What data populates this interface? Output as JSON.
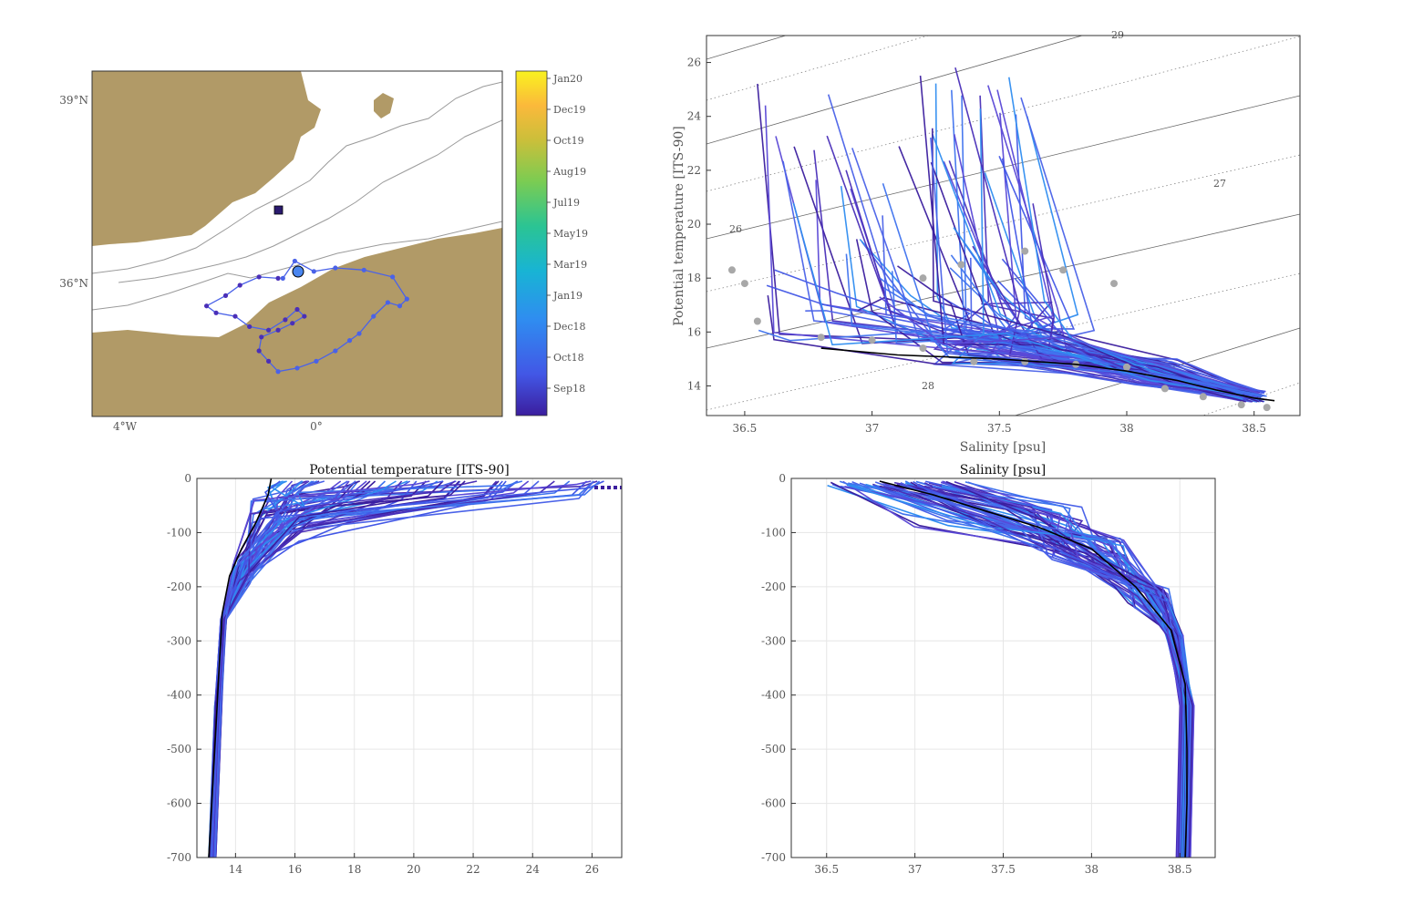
{
  "colors": {
    "land": "#b19a67",
    "track": "#4a62e8",
    "mean_profile": "#000000",
    "reference_points": "#a8a8a8",
    "colormap": [
      "#3b1e9e",
      "#4257e6",
      "#2f8df0",
      "#18b4d4",
      "#2bc493",
      "#7bcc52",
      "#cbbf3a",
      "#fbb93b",
      "#f9f21f"
    ]
  },
  "chart_data": [
    {
      "id": "map",
      "type": "scatter",
      "title": "",
      "y_ticks": [
        "39°N",
        "36°N"
      ],
      "x_ticks": [
        "4°W",
        "0°"
      ],
      "xlim": [
        -5,
        3.6
      ],
      "ylim": [
        34.6,
        39.6
      ],
      "track": [
        [
          -1.0,
          36.6
        ],
        [
          -0.75,
          36.85
        ],
        [
          -0.35,
          36.7
        ],
        [
          0.1,
          36.75
        ],
        [
          0.7,
          36.72
        ],
        [
          1.3,
          36.62
        ],
        [
          1.6,
          36.3
        ],
        [
          1.45,
          36.2
        ],
        [
          1.2,
          36.25
        ],
        [
          0.9,
          36.05
        ],
        [
          0.6,
          35.8
        ],
        [
          0.4,
          35.7
        ],
        [
          0.1,
          35.55
        ],
        [
          -0.3,
          35.4
        ],
        [
          -0.7,
          35.3
        ],
        [
          -1.1,
          35.25
        ],
        [
          -1.3,
          35.4
        ],
        [
          -1.5,
          35.55
        ],
        [
          -1.45,
          35.75
        ],
        [
          -1.1,
          35.85
        ],
        [
          -0.8,
          35.95
        ],
        [
          -0.55,
          36.05
        ],
        [
          -0.7,
          36.15
        ],
        [
          -0.95,
          36.0
        ],
        [
          -1.3,
          35.85
        ],
        [
          -1.7,
          35.9
        ],
        [
          -2.0,
          36.05
        ],
        [
          -2.4,
          36.1
        ],
        [
          -2.6,
          36.2
        ],
        [
          -2.2,
          36.35
        ],
        [
          -1.9,
          36.5
        ],
        [
          -1.5,
          36.62
        ],
        [
          -1.1,
          36.6
        ]
      ],
      "colorbar": {
        "labels": [
          "Jan20",
          "Dec19",
          "Oct19",
          "Aug19",
          "Jul19",
          "May19",
          "Mar19",
          "Jan19",
          "Dec18",
          "Oct18",
          "Sep18"
        ]
      }
    },
    {
      "id": "ts",
      "type": "line",
      "xlabel": "Salinity [psu]",
      "ylabel": "Potential temperature [ITS-90]",
      "xlim": [
        36.35,
        38.68
      ],
      "ylim": [
        12.9,
        27.0
      ],
      "x_ticks": [
        "36.5",
        "37",
        "37.5",
        "38",
        "38.5"
      ],
      "y_ticks": [
        "14",
        "16",
        "18",
        "20",
        "22",
        "24",
        "26"
      ],
      "isopycnal_labels": [
        "26",
        "27",
        "28",
        "29"
      ],
      "mean_profile": [
        [
          36.8,
          15.4
        ],
        [
          37.1,
          15.15
        ],
        [
          37.5,
          15.0
        ],
        [
          37.8,
          14.8
        ],
        [
          38.0,
          14.55
        ],
        [
          38.2,
          14.2
        ],
        [
          38.35,
          13.85
        ],
        [
          38.5,
          13.55
        ],
        [
          38.58,
          13.45
        ]
      ],
      "reference_points": [
        [
          36.45,
          18.3
        ],
        [
          36.5,
          17.8
        ],
        [
          36.55,
          16.4
        ],
        [
          36.8,
          15.8
        ],
        [
          37.0,
          15.7
        ],
        [
          37.2,
          15.4
        ],
        [
          37.4,
          14.9
        ],
        [
          37.6,
          14.9
        ],
        [
          37.8,
          14.8
        ],
        [
          38.0,
          14.7
        ],
        [
          38.15,
          13.9
        ],
        [
          38.3,
          13.6
        ],
        [
          38.45,
          13.3
        ],
        [
          38.55,
          13.2
        ],
        [
          37.2,
          18.0
        ],
        [
          37.35,
          18.5
        ],
        [
          37.6,
          19.0
        ],
        [
          37.75,
          18.3
        ],
        [
          37.95,
          17.8
        ]
      ]
    },
    {
      "id": "temp_profile",
      "type": "line",
      "title": "Potential temperature [ITS-90]",
      "xlim": [
        12.7,
        27.0
      ],
      "ylim": [
        -700,
        0
      ],
      "x_ticks": [
        "14",
        "16",
        "18",
        "20",
        "22",
        "24",
        "26"
      ],
      "y_ticks": [
        "0",
        "-100",
        "-200",
        "-300",
        "-400",
        "-500",
        "-600",
        "-700"
      ],
      "mean_profile": [
        [
          15.2,
          0
        ],
        [
          15.1,
          -30
        ],
        [
          14.7,
          -80
        ],
        [
          14.2,
          -130
        ],
        [
          13.8,
          -180
        ],
        [
          13.55,
          -250
        ],
        [
          13.45,
          -350
        ],
        [
          13.35,
          -450
        ],
        [
          13.25,
          -550
        ],
        [
          13.15,
          -650
        ],
        [
          13.1,
          -700
        ]
      ]
    },
    {
      "id": "sal_profile",
      "type": "line",
      "title": "Salinity [psu]",
      "xlim": [
        36.3,
        38.7
      ],
      "ylim": [
        -700,
        0
      ],
      "x_ticks": [
        "36.5",
        "37",
        "37.5",
        "38",
        "38.5"
      ],
      "y_ticks": [
        "0",
        "-100",
        "-200",
        "-300",
        "-400",
        "-500",
        "-600",
        "-700"
      ],
      "mean_profile": [
        [
          36.8,
          -5
        ],
        [
          37.1,
          -30
        ],
        [
          37.4,
          -60
        ],
        [
          37.7,
          -90
        ],
        [
          38.0,
          -130
        ],
        [
          38.25,
          -200
        ],
        [
          38.45,
          -280
        ],
        [
          38.53,
          -380
        ],
        [
          38.54,
          -500
        ],
        [
          38.54,
          -600
        ],
        [
          38.53,
          -700
        ]
      ]
    }
  ]
}
